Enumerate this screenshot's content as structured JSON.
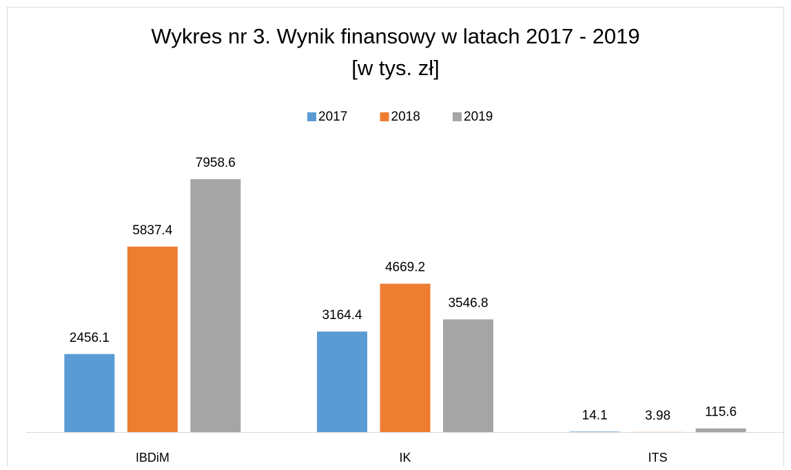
{
  "chart_data": {
    "type": "bar",
    "title": "Wykres nr 3. Wynik finansowy w latach 2017 - 2019",
    "subtitle": "[w tys. zł]",
    "categories": [
      "IBDiM",
      "IK",
      "ITS"
    ],
    "series": [
      {
        "name": "2017",
        "color": "#5b9bd5",
        "values": [
          2456.1,
          3164.4,
          14.1
        ]
      },
      {
        "name": "2018",
        "color": "#ed7d31",
        "values": [
          5837.4,
          4669.2,
          3.98
        ]
      },
      {
        "name": "2019",
        "color": "#a5a5a5",
        "values": [
          7958.6,
          3546.8,
          115.6
        ]
      }
    ],
    "legend": "top"
  }
}
